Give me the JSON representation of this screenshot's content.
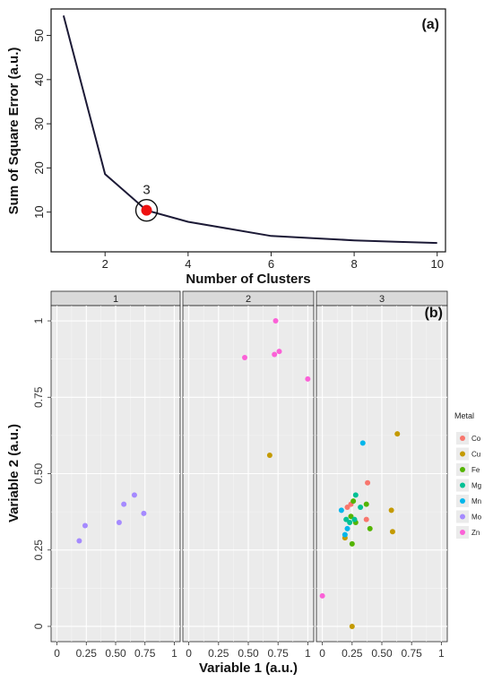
{
  "chart_data": [
    {
      "type": "line",
      "panel_label": "(a)",
      "xlabel": "Number of Clusters",
      "ylabel": "Sum of Square Error (a.u.)",
      "xlim": [
        0.7,
        10.2
      ],
      "ylim": [
        1,
        56
      ],
      "xticks": [
        2,
        4,
        6,
        8,
        10
      ],
      "yticks": [
        10,
        20,
        30,
        40,
        50
      ],
      "grid": false,
      "series": [
        {
          "x": [
            1,
            2,
            3,
            4,
            5,
            6,
            7,
            8,
            9,
            10
          ],
          "y": [
            54.5,
            18.6,
            10.4,
            7.8,
            6.2,
            4.6,
            4.1,
            3.6,
            3.3,
            3.0
          ]
        }
      ],
      "annotation": {
        "label": "3",
        "x": 3,
        "y": 10.4,
        "color": "#ee1111"
      }
    },
    {
      "type": "scatter",
      "panel_label": "(b)",
      "xlabel": "Variable 1 (a.u.)",
      "ylabel": "Variable 2 (a.u.)",
      "xlim": [
        -0.05,
        1.05
      ],
      "ylim": [
        -0.05,
        1.05
      ],
      "xtick_labels": [
        "0",
        "0.25",
        "0.50",
        "0.75",
        "1"
      ],
      "xtick_values": [
        0,
        0.25,
        0.5,
        0.75,
        1
      ],
      "ytick_labels": [
        "0",
        "0.25",
        "0.50",
        "0.75",
        "1"
      ],
      "ytick_values": [
        0,
        0.25,
        0.5,
        0.75,
        1
      ],
      "grid": true,
      "facets": [
        "1",
        "2",
        "3"
      ],
      "legend": {
        "title": "Metal",
        "position": "right",
        "entries": [
          {
            "name": "Co",
            "color": "#f8766d"
          },
          {
            "name": "Cu",
            "color": "#c49a00"
          },
          {
            "name": "Fe",
            "color": "#53b400"
          },
          {
            "name": "Mg",
            "color": "#00c094"
          },
          {
            "name": "Mn",
            "color": "#00b6eb"
          },
          {
            "name": "Mo",
            "color": "#a58aff"
          },
          {
            "name": "Zn",
            "color": "#fb61d7"
          }
        ]
      },
      "points": [
        {
          "facet": "1",
          "metal": "Mo",
          "x": 0.19,
          "y": 0.28
        },
        {
          "facet": "1",
          "metal": "Mo",
          "x": 0.24,
          "y": 0.33
        },
        {
          "facet": "1",
          "metal": "Mo",
          "x": 0.53,
          "y": 0.34
        },
        {
          "facet": "1",
          "metal": "Mo",
          "x": 0.57,
          "y": 0.4
        },
        {
          "facet": "1",
          "metal": "Mo",
          "x": 0.66,
          "y": 0.43
        },
        {
          "facet": "1",
          "metal": "Mo",
          "x": 0.74,
          "y": 0.37
        },
        {
          "facet": "2",
          "metal": "Zn",
          "x": 0.47,
          "y": 0.88
        },
        {
          "facet": "2",
          "metal": "Zn",
          "x": 0.73,
          "y": 1.0
        },
        {
          "facet": "2",
          "metal": "Zn",
          "x": 0.72,
          "y": 0.89
        },
        {
          "facet": "2",
          "metal": "Zn",
          "x": 0.76,
          "y": 0.9
        },
        {
          "facet": "2",
          "metal": "Zn",
          "x": 1.0,
          "y": 0.81
        },
        {
          "facet": "2",
          "metal": "Cu",
          "x": 0.68,
          "y": 0.56
        },
        {
          "facet": "3",
          "metal": "Zn",
          "x": 0.0,
          "y": 0.1
        },
        {
          "facet": "3",
          "metal": "Cu",
          "x": 0.25,
          "y": 0.0
        },
        {
          "facet": "3",
          "metal": "Cu",
          "x": 0.63,
          "y": 0.63
        },
        {
          "facet": "3",
          "metal": "Cu",
          "x": 0.58,
          "y": 0.38
        },
        {
          "facet": "3",
          "metal": "Cu",
          "x": 0.59,
          "y": 0.31
        },
        {
          "facet": "3",
          "metal": "Cu",
          "x": 0.19,
          "y": 0.29
        },
        {
          "facet": "3",
          "metal": "Mn",
          "x": 0.34,
          "y": 0.6
        },
        {
          "facet": "3",
          "metal": "Mn",
          "x": 0.16,
          "y": 0.38
        },
        {
          "facet": "3",
          "metal": "Mn",
          "x": 0.19,
          "y": 0.3
        },
        {
          "facet": "3",
          "metal": "Mn",
          "x": 0.21,
          "y": 0.32
        },
        {
          "facet": "3",
          "metal": "Co",
          "x": 0.38,
          "y": 0.47
        },
        {
          "facet": "3",
          "metal": "Co",
          "x": 0.21,
          "y": 0.39
        },
        {
          "facet": "3",
          "metal": "Co",
          "x": 0.24,
          "y": 0.4
        },
        {
          "facet": "3",
          "metal": "Co",
          "x": 0.37,
          "y": 0.35
        },
        {
          "facet": "3",
          "metal": "Fe",
          "x": 0.26,
          "y": 0.41
        },
        {
          "facet": "3",
          "metal": "Fe",
          "x": 0.24,
          "y": 0.36
        },
        {
          "facet": "3",
          "metal": "Fe",
          "x": 0.37,
          "y": 0.4
        },
        {
          "facet": "3",
          "metal": "Fe",
          "x": 0.4,
          "y": 0.32
        },
        {
          "facet": "3",
          "metal": "Fe",
          "x": 0.25,
          "y": 0.27
        },
        {
          "facet": "3",
          "metal": "Fe",
          "x": 0.28,
          "y": 0.34
        },
        {
          "facet": "3",
          "metal": "Mg",
          "x": 0.28,
          "y": 0.43
        },
        {
          "facet": "3",
          "metal": "Mg",
          "x": 0.32,
          "y": 0.39
        },
        {
          "facet": "3",
          "metal": "Mg",
          "x": 0.2,
          "y": 0.35
        },
        {
          "facet": "3",
          "metal": "Mg",
          "x": 0.23,
          "y": 0.34
        },
        {
          "facet": "3",
          "metal": "Mg",
          "x": 0.27,
          "y": 0.35
        }
      ]
    }
  ]
}
